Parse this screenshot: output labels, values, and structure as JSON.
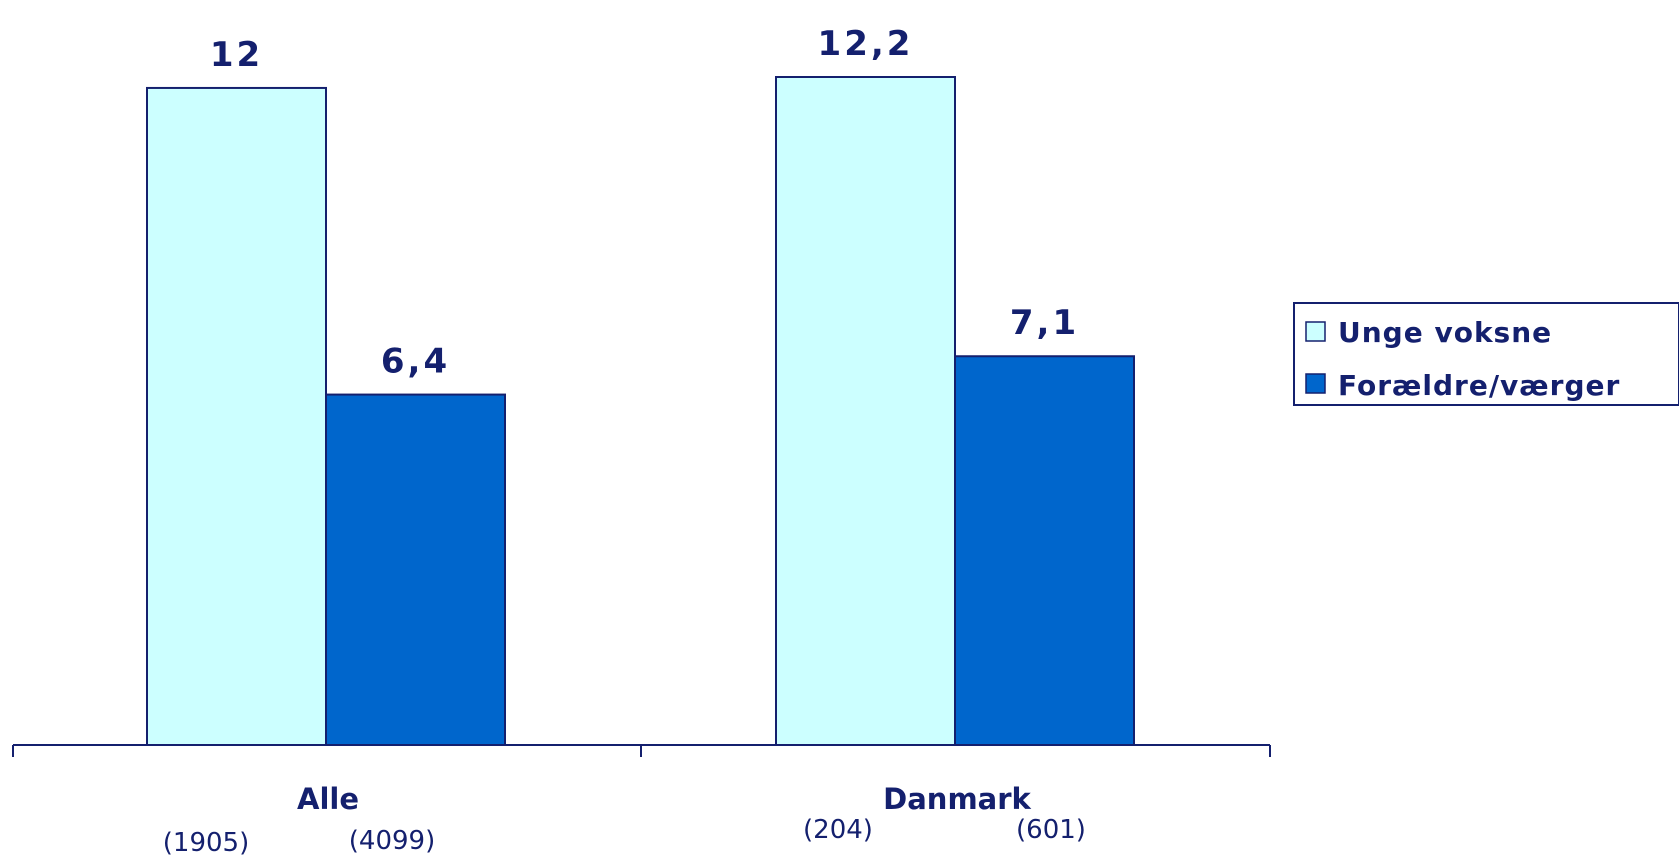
{
  "chart_data": {
    "type": "bar",
    "categories": [
      "Alle",
      "Danmark"
    ],
    "category_counts": [
      [
        "(1905)",
        "(4099)"
      ],
      [
        "(204)",
        "(601)"
      ]
    ],
    "series": [
      {
        "name": "Unge voksne",
        "values": [
          12,
          12.2
        ],
        "labels": [
          "12",
          "12,2"
        ],
        "color": "#ccffff"
      },
      {
        "name": "Forældre/værger",
        "values": [
          6.4,
          7.1
        ],
        "labels": [
          "6,4",
          "7,1"
        ],
        "color": "#0066cc"
      }
    ],
    "ylim": [
      0,
      12.2
    ],
    "legend_position": "right",
    "grid": false,
    "axis_color": "#14206e"
  }
}
